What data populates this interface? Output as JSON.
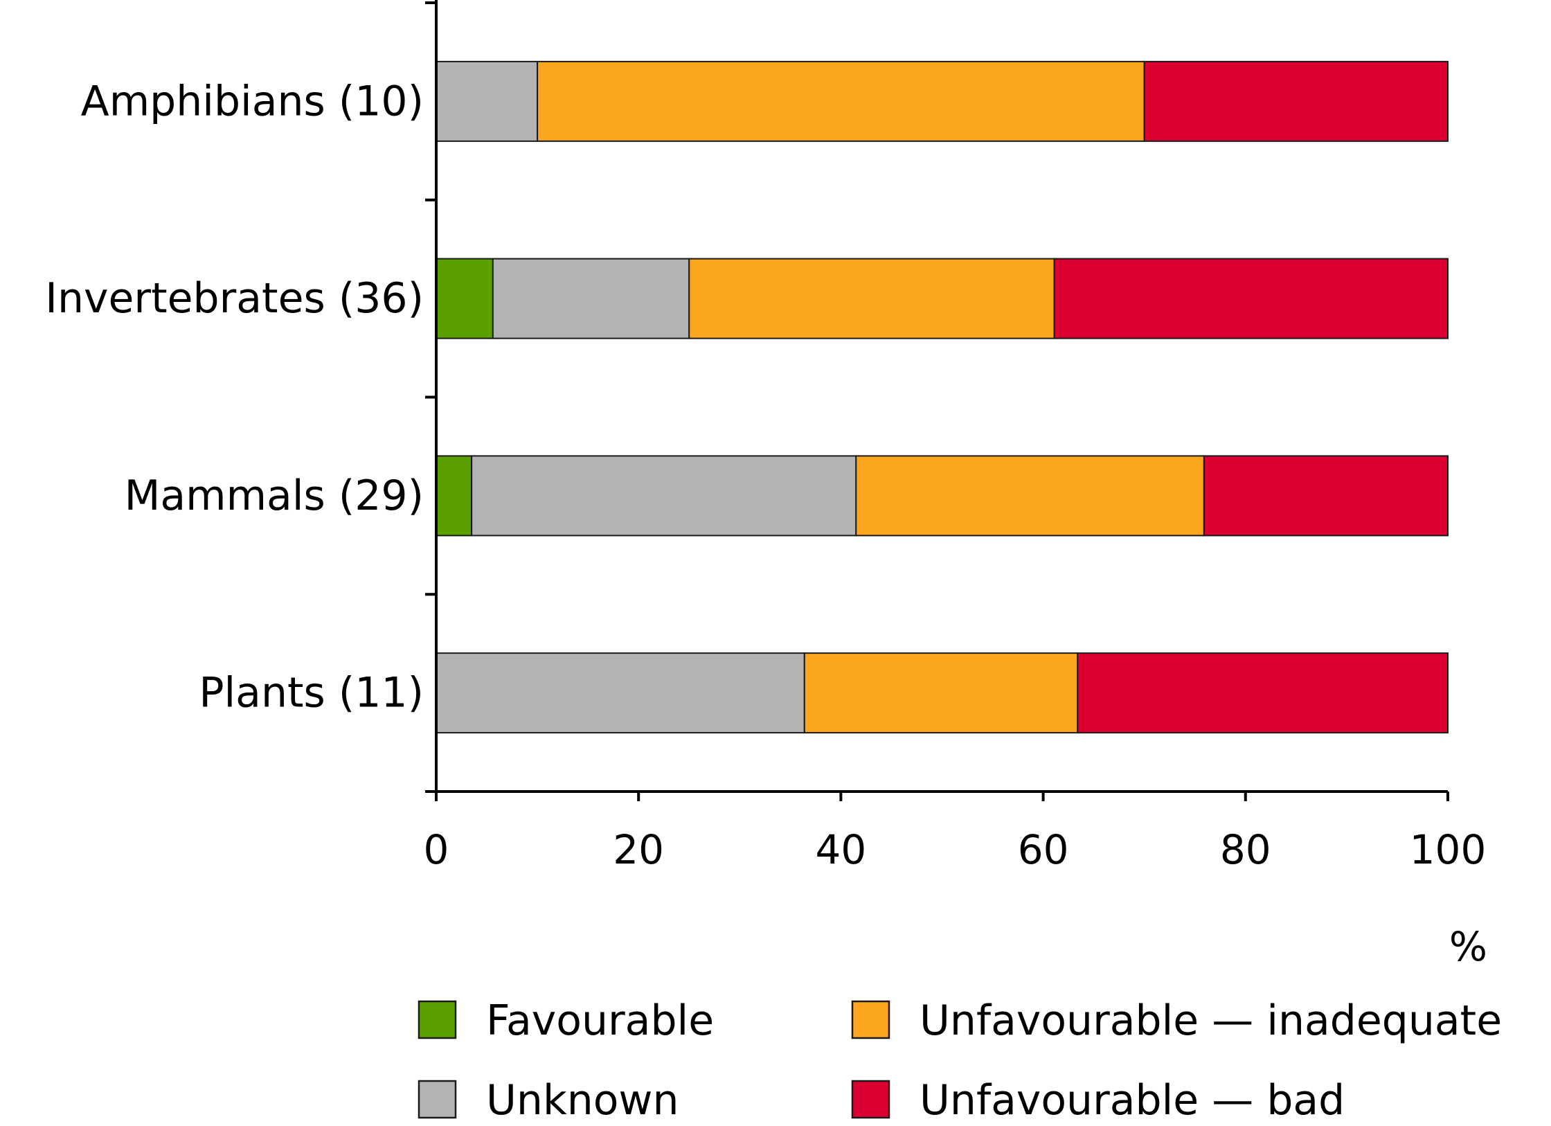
{
  "chart_data": {
    "type": "bar",
    "orientation": "horizontal",
    "stacked": true,
    "categories": [
      "Amphibians (10)",
      "Invertebrates (36)",
      "Mammals (29)",
      "Plants (11)"
    ],
    "series": [
      {
        "name": "Favourable",
        "color": "#5aa100",
        "values": [
          0,
          5.6,
          3.5,
          0
        ]
      },
      {
        "name": "Unknown",
        "color": "#b3b3b3",
        "values": [
          10,
          19.4,
          38.0,
          36.4
        ]
      },
      {
        "name": "Unfavourable — inadequate",
        "color": "#fba61e",
        "values": [
          60,
          36.1,
          34.4,
          27.0
        ]
      },
      {
        "name": "Unfavourable — bad",
        "color": "#dc0032",
        "values": [
          30,
          38.9,
          24.1,
          36.6
        ]
      }
    ],
    "xlim": [
      0,
      100
    ],
    "xticks": [
      "0",
      "20",
      "40",
      "60",
      "80",
      "100"
    ],
    "xlabel": "%",
    "ylabel": "",
    "title": "",
    "grid": false,
    "legend_position": "bottom"
  }
}
